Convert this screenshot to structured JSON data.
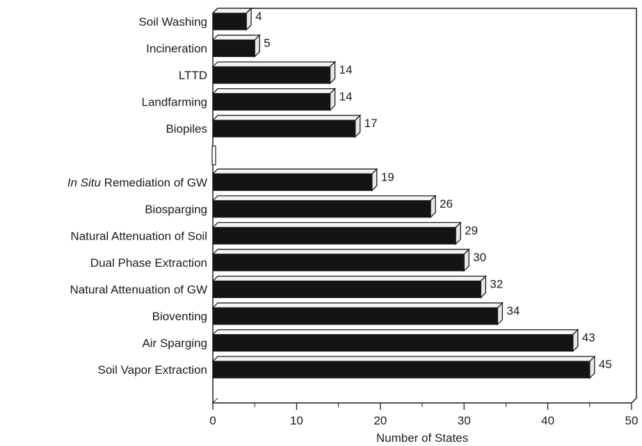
{
  "chart_data": {
    "type": "bar",
    "orientation": "horizontal",
    "style": "3d",
    "categories": [
      "Soil Washing",
      "Incineration",
      "LTTD",
      "Landfarming",
      "Biopiles",
      "",
      "In Situ Remediation of GW",
      "Biosparging",
      "Natural Attenuation of Soil",
      "Dual Phase Extraction",
      "Natural Attenuation of GW",
      "Bioventing",
      "Air Sparging",
      "Soil Vapor Extraction"
    ],
    "values": [
      4,
      5,
      14,
      14,
      17,
      null,
      19,
      26,
      29,
      30,
      32,
      34,
      43,
      45
    ],
    "value_labels": [
      "4",
      "5",
      "14",
      "14",
      "17",
      "",
      "19",
      "26",
      "29",
      "30",
      "32",
      "34",
      "43",
      "45"
    ],
    "title": "",
    "xlabel": "Number of States",
    "ylabel": "",
    "xlim": [
      0,
      50
    ],
    "xticks": [
      0,
      10,
      20,
      30,
      40,
      50
    ],
    "xtick_labels": [
      "0",
      "10",
      "20",
      "30",
      "40",
      "50"
    ],
    "grid": false,
    "legend": "none",
    "colors": {
      "bar_fill": "#141414",
      "bar_top": "#f4f4f4",
      "bar_side": "#e8e8e8",
      "axis": "#1a1a1a",
      "background": "#ffffff"
    }
  }
}
